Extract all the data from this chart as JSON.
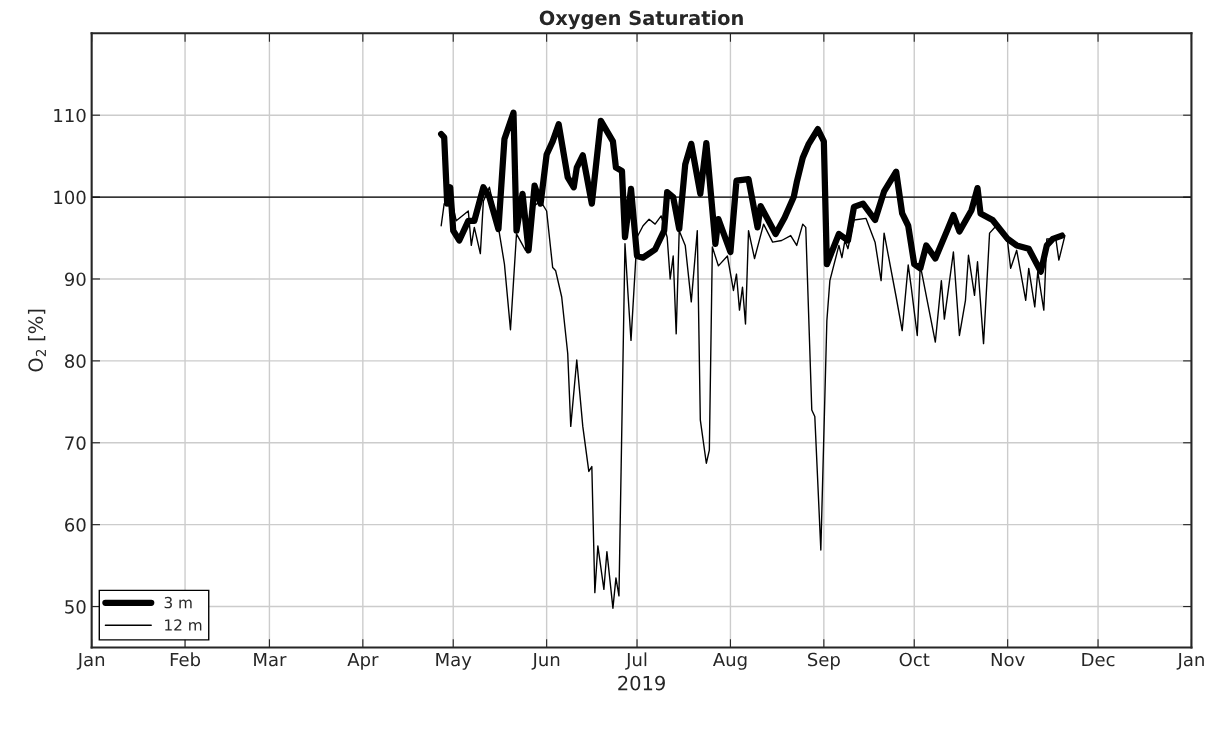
{
  "chart_data": {
    "type": "line",
    "title": "Oxygen Saturation",
    "xlabel": "2019",
    "ylabel": "O$_{2}$ [%]",
    "xlim": [
      "2019-01-01",
      "2020-01-01"
    ],
    "xticks": [
      {
        "value": "2019-01-01",
        "label": "Jan"
      },
      {
        "value": "2019-02-01",
        "label": "Feb"
      },
      {
        "value": "2019-03-01",
        "label": "Mar"
      },
      {
        "value": "2019-04-01",
        "label": "Apr"
      },
      {
        "value": "2019-05-01",
        "label": "May"
      },
      {
        "value": "2019-06-01",
        "label": "Jun"
      },
      {
        "value": "2019-07-01",
        "label": "Jul"
      },
      {
        "value": "2019-08-01",
        "label": "Aug"
      },
      {
        "value": "2019-09-01",
        "label": "Sep"
      },
      {
        "value": "2019-10-01",
        "label": "Oct"
      },
      {
        "value": "2019-11-01",
        "label": "Nov"
      },
      {
        "value": "2019-12-01",
        "label": "Dec"
      },
      {
        "value": "2020-01-01",
        "label": "Jan"
      }
    ],
    "ylim": [
      45,
      120
    ],
    "yticks": [
      50,
      60,
      70,
      80,
      90,
      100,
      110
    ],
    "grid": true,
    "legend": "bottom left",
    "marker": "none",
    "line_style": "solid",
    "ref_lines": [
      {
        "axis": "y",
        "value": 100,
        "color": "#000000"
      }
    ],
    "series": [
      {
        "name": "3 m",
        "color": "#000000",
        "x": [
          "2019-04-27",
          "2019-04-28",
          "2019-04-29",
          "2019-04-30",
          "2019-05-01",
          "2019-05-03",
          "2019-05-06",
          "2019-05-08",
          "2019-05-11",
          "2019-05-13",
          "2019-05-16",
          "2019-05-18",
          "2019-05-21",
          "2019-05-22",
          "2019-05-24",
          "2019-05-26",
          "2019-05-28",
          "2019-05-30",
          "2019-06-01",
          "2019-06-03",
          "2019-06-05",
          "2019-06-08",
          "2019-06-10",
          "2019-06-11",
          "2019-06-13",
          "2019-06-16",
          "2019-06-19",
          "2019-06-23",
          "2019-06-24",
          "2019-06-26",
          "2019-06-27",
          "2019-06-29",
          "2019-07-01",
          "2019-07-03",
          "2019-07-07",
          "2019-07-10",
          "2019-07-11",
          "2019-07-13",
          "2019-07-15",
          "2019-07-17",
          "2019-07-19",
          "2019-07-22",
          "2019-07-24",
          "2019-07-27",
          "2019-07-28",
          "2019-08-01",
          "2019-08-03",
          "2019-08-07",
          "2019-08-10",
          "2019-08-11",
          "2019-08-16",
          "2019-08-19",
          "2019-08-22",
          "2019-08-23",
          "2019-08-25",
          "2019-08-27",
          "2019-08-30",
          "2019-09-01",
          "2019-09-02",
          "2019-09-06",
          "2019-09-09",
          "2019-09-11",
          "2019-09-14",
          "2019-09-18",
          "2019-09-21",
          "2019-09-25",
          "2019-09-27",
          "2019-09-29",
          "2019-10-01",
          "2019-10-03",
          "2019-10-05",
          "2019-10-08",
          "2019-10-12",
          "2019-10-14",
          "2019-10-16",
          "2019-10-20",
          "2019-10-22",
          "2019-10-23",
          "2019-10-27",
          "2019-11-01",
          "2019-11-04",
          "2019-11-08",
          "2019-11-12",
          "2019-11-14",
          "2019-11-16",
          "2019-11-19"
        ],
        "values": [
          107.7,
          107.3,
          99.2,
          101.2,
          95.9,
          94.7,
          97.1,
          97.1,
          101.2,
          100,
          96.1,
          107.1,
          110.3,
          95.9,
          100.4,
          93.5,
          101.4,
          99.2,
          105.2,
          106.8,
          108.9,
          102.4,
          101.2,
          103.6,
          105.1,
          99.2,
          109.3,
          106.8,
          103.6,
          103.2,
          95.1,
          101,
          92.8,
          92.6,
          93.6,
          95.9,
          100.6,
          100,
          96.1,
          104,
          106.5,
          100.4,
          106.6,
          94.3,
          97.3,
          93.3,
          102,
          102.2,
          96.3,
          98.9,
          95.5,
          97.5,
          100,
          101.8,
          104.8,
          106.5,
          108.3,
          106.8,
          91.8,
          95.5,
          94.7,
          98.8,
          99.2,
          97.2,
          100.7,
          103.1,
          98,
          96.5,
          91.8,
          91.3,
          94.1,
          92.5,
          96,
          97.8,
          95.8,
          98.4,
          101.1,
          98,
          97.2,
          94.9,
          94.1,
          93.7,
          90.9,
          94.1,
          94.9,
          95.3
        ]
      },
      {
        "name": "12 m",
        "color": "#000000",
        "x": [
          "2019-04-27",
          "2019-04-28",
          "2019-05-01",
          "2019-05-02",
          "2019-05-06",
          "2019-05-07",
          "2019-05-08",
          "2019-05-10",
          "2019-05-11",
          "2019-05-13",
          "2019-05-16",
          "2019-05-18",
          "2019-05-20",
          "2019-05-22",
          "2019-05-25",
          "2019-05-27",
          "2019-05-30",
          "2019-06-01",
          "2019-06-03",
          "2019-06-04",
          "2019-06-06",
          "2019-06-08",
          "2019-06-09",
          "2019-06-11",
          "2019-06-13",
          "2019-06-15",
          "2019-06-16",
          "2019-06-17",
          "2019-06-18",
          "2019-06-20",
          "2019-06-21",
          "2019-06-23",
          "2019-06-24",
          "2019-06-25",
          "2019-06-27",
          "2019-06-28",
          "2019-06-29",
          "2019-07-01",
          "2019-07-03",
          "2019-07-05",
          "2019-07-07",
          "2019-07-09",
          "2019-07-11",
          "2019-07-12",
          "2019-07-13",
          "2019-07-14",
          "2019-07-15",
          "2019-07-17",
          "2019-07-19",
          "2019-07-21",
          "2019-07-22",
          "2019-07-24",
          "2019-07-25",
          "2019-07-26",
          "2019-07-28",
          "2019-07-31",
          "2019-08-02",
          "2019-08-03",
          "2019-08-04",
          "2019-08-05",
          "2019-08-06",
          "2019-08-07",
          "2019-08-09",
          "2019-08-12",
          "2019-08-15",
          "2019-08-18",
          "2019-08-21",
          "2019-08-23",
          "2019-08-25",
          "2019-08-26",
          "2019-08-28",
          "2019-08-29",
          "2019-08-31",
          "2019-09-02",
          "2019-09-03",
          "2019-09-06",
          "2019-09-07",
          "2019-09-08",
          "2019-09-09",
          "2019-09-11",
          "2019-09-15",
          "2019-09-18",
          "2019-09-20",
          "2019-09-21",
          "2019-09-25",
          "2019-09-27",
          "2019-09-29",
          "2019-09-30",
          "2019-10-02",
          "2019-10-03",
          "2019-10-08",
          "2019-10-10",
          "2019-10-11",
          "2019-10-14",
          "2019-10-16",
          "2019-10-18",
          "2019-10-19",
          "2019-10-21",
          "2019-10-22",
          "2019-10-24",
          "2019-10-26",
          "2019-10-28",
          "2019-11-01",
          "2019-11-02",
          "2019-11-04",
          "2019-11-07",
          "2019-11-08",
          "2019-11-10",
          "2019-11-11",
          "2019-11-13",
          "2019-11-14",
          "2019-11-17",
          "2019-11-18",
          "2019-11-20"
        ],
        "values": [
          96.5,
          99.2,
          98.7,
          97.1,
          98.3,
          94.1,
          96.3,
          93.1,
          99.5,
          101.2,
          96.3,
          91.8,
          83.8,
          95.5,
          93.5,
          98.7,
          99.5,
          98.3,
          91.4,
          91,
          87.8,
          80.9,
          72,
          80.1,
          72,
          66.5,
          67.1,
          51.7,
          57.4,
          52.1,
          56.7,
          49.8,
          53.5,
          51.3,
          94.3,
          88.2,
          82.5,
          95.1,
          96.5,
          97.3,
          96.7,
          97.7,
          95.1,
          90,
          92.8,
          83.3,
          95.9,
          94.1,
          87.2,
          95.9,
          72.8,
          67.5,
          69.1,
          93.9,
          91.6,
          92.8,
          88.6,
          90.6,
          86.2,
          89,
          84.5,
          95.9,
          92.5,
          96.7,
          94.5,
          94.7,
          95.3,
          94.1,
          96.7,
          96.3,
          74,
          73.2,
          56.9,
          84.9,
          89.8,
          94.1,
          92.6,
          94.7,
          93.7,
          97.2,
          97.4,
          94.5,
          89.8,
          95.6,
          87.8,
          83.7,
          91.7,
          89,
          83.1,
          91.7,
          82.3,
          89.8,
          85.1,
          93.3,
          83.1,
          87.4,
          92.9,
          88,
          92.1,
          82.1,
          95.6,
          96.4,
          94.5,
          91.3,
          93.5,
          87.4,
          91.3,
          86.6,
          90.9,
          86.2,
          94.9,
          94.9,
          92.3,
          95.3
        ]
      }
    ]
  }
}
